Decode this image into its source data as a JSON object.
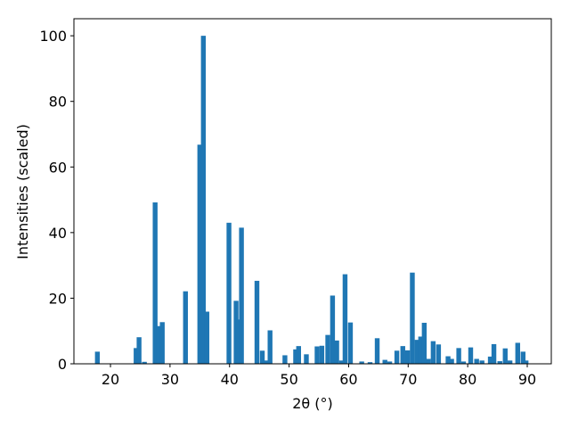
{
  "chart_data": {
    "type": "bar",
    "x_label": "2θ (°)",
    "y_label": "Intensities (scaled)",
    "color": "#1f77b4",
    "x": [
      17.8,
      24.3,
      24.8,
      25.7,
      27.5,
      28.1,
      28.7,
      32.6,
      35.0,
      35.6,
      36.2,
      39.9,
      41.1,
      41.6,
      42.0,
      44.6,
      45.5,
      46.2,
      46.8,
      49.3,
      51.1,
      51.6,
      52.9,
      54.7,
      55.5,
      56.5,
      57.3,
      58.0,
      58.8,
      59.4,
      60.3,
      62.2,
      63.6,
      64.8,
      66.1,
      66.9,
      68.1,
      69.1,
      69.9,
      70.7,
      71.5,
      72.1,
      72.7,
      73.4,
      74.2,
      75.1,
      76.7,
      77.3,
      78.5,
      79.3,
      80.5,
      81.5,
      82.4,
      83.8,
      84.4,
      85.4,
      86.3,
      87.1,
      88.4,
      89.3,
      89.8
    ],
    "values": [
      3.7,
      4.8,
      8.1,
      0.6,
      49.2,
      11.5,
      12.7,
      22.1,
      66.8,
      100,
      15.9,
      43.0,
      19.2,
      13.5,
      41.5,
      25.3,
      4.0,
      1.0,
      10.2,
      2.6,
      4.4,
      5.4,
      2.9,
      5.3,
      5.5,
      8.8,
      20.8,
      7.1,
      1.0,
      27.3,
      12.6,
      0.7,
      0.5,
      7.8,
      1.2,
      0.7,
      4.0,
      5.4,
      4.1,
      27.8,
      7.3,
      8.3,
      12.5,
      1.5,
      6.9,
      5.9,
      2.3,
      1.5,
      4.8,
      0.7,
      5.0,
      1.5,
      1.0,
      2.2,
      6.0,
      0.8,
      4.7,
      1.0,
      6.4,
      3.7,
      1.0
    ],
    "xlim": [
      13.86,
      94.04
    ],
    "xticks": [
      20,
      30,
      40,
      50,
      60,
      70,
      80,
      90
    ],
    "ylim": [
      0,
      105.2
    ],
    "yticks": [
      0,
      20,
      40,
      60,
      80,
      100
    ],
    "grid": false
  }
}
